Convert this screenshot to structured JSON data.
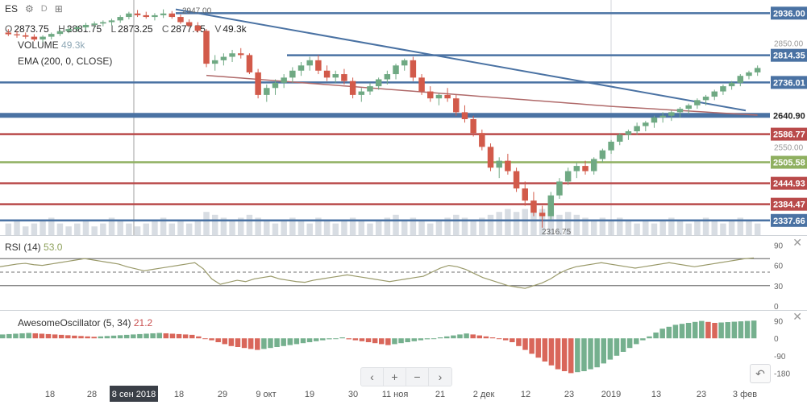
{
  "toolbar": {
    "symbol": "ES",
    "settings_icon": "gear-icon",
    "interval": "D",
    "compare_icon": "compare-icon"
  },
  "ohlc": {
    "o_label": "O",
    "o": "2873.75",
    "h_label": "H",
    "h": "2881.75",
    "l_label": "L",
    "l": "2873.25",
    "c_label": "C",
    "c": "2877.75",
    "v_label": "V",
    "v": "49.3k"
  },
  "volume_legend": {
    "label": "VOLUME",
    "value": "49.3k"
  },
  "ema_legend": {
    "label": "EMA (200, 0, CLOSE)"
  },
  "rsi_legend": {
    "label": "RSI (14)",
    "value": "53.0"
  },
  "ao_legend": {
    "label": "AwesomeOscillator (5, 34)",
    "value": "21.2"
  },
  "navigation": {
    "prev": "‹",
    "zoom_in": "+",
    "zoom_out": "−",
    "next": "›"
  },
  "undo": {
    "icon": "undo-icon"
  },
  "colors": {
    "up": "#6fa983",
    "down": "#d25a4a",
    "blue_level": "#4a72a3",
    "red_level": "#b94a4a",
    "green_level": "#8fb060",
    "ema": "#b06a6a",
    "rsi_line": "#9a9a6a",
    "ao_up": "#75b08e",
    "ao_down": "#d9665a",
    "volume": "#d8dde3"
  },
  "chart_data": [
    {
      "type": "candlestick",
      "title": "ES",
      "interval": "D",
      "ylim": [
        2300,
        2960
      ],
      "y_ticks": [
        2850.0,
        2550.0
      ],
      "price_labels": [
        {
          "value": 2936.0,
          "color": "#4a72a3"
        },
        {
          "value": 2814.35,
          "color": "#4a72a3"
        },
        {
          "value": 2736.01,
          "color": "#4a72a3"
        },
        {
          "value": 2640.9,
          "color": "#ffffff"
        },
        {
          "value": 2586.77,
          "color": "#b94a4a"
        },
        {
          "value": 2505.58,
          "color": "#8fb060"
        },
        {
          "value": 2444.93,
          "color": "#b94a4a"
        },
        {
          "value": 2384.47,
          "color": "#b94a4a"
        },
        {
          "value": 2337.66,
          "color": "#4a72a3"
        }
      ],
      "annotations": [
        {
          "text": "2947.00",
          "value": 2947.0
        },
        {
          "text": "2316.75",
          "value": 2316.75
        }
      ],
      "ohlc": [
        [
          2880,
          2890,
          2870,
          2875
        ],
        [
          2875,
          2885,
          2865,
          2872
        ],
        [
          2872,
          2880,
          2862,
          2868
        ],
        [
          2868,
          2875,
          2855,
          2860
        ],
        [
          2860,
          2872,
          2852,
          2868
        ],
        [
          2868,
          2880,
          2860,
          2876
        ],
        [
          2876,
          2888,
          2870,
          2884
        ],
        [
          2884,
          2896,
          2878,
          2890
        ],
        [
          2890,
          2900,
          2882,
          2895
        ],
        [
          2895,
          2908,
          2888,
          2902
        ],
        [
          2902,
          2912,
          2895,
          2906
        ],
        [
          2906,
          2915,
          2898,
          2910
        ],
        [
          2910,
          2920,
          2900,
          2915
        ],
        [
          2915,
          2930,
          2908,
          2925
        ],
        [
          2925,
          2940,
          2918,
          2935
        ],
        [
          2935,
          2945,
          2925,
          2930
        ],
        [
          2930,
          2940,
          2920,
          2925
        ],
        [
          2925,
          2936,
          2915,
          2930
        ],
        [
          2930,
          2947,
          2922,
          2935
        ],
        [
          2935,
          2942,
          2920,
          2925
        ],
        [
          2925,
          2932,
          2905,
          2910
        ],
        [
          2910,
          2918,
          2895,
          2900
        ],
        [
          2900,
          2910,
          2880,
          2885
        ],
        [
          2885,
          2890,
          2780,
          2790
        ],
        [
          2790,
          2815,
          2770,
          2800
        ],
        [
          2800,
          2820,
          2785,
          2810
        ],
        [
          2810,
          2830,
          2795,
          2820
        ],
        [
          2820,
          2835,
          2805,
          2815
        ],
        [
          2815,
          2820,
          2760,
          2765
        ],
        [
          2765,
          2775,
          2690,
          2700
        ],
        [
          2700,
          2730,
          2680,
          2720
        ],
        [
          2720,
          2745,
          2700,
          2735
        ],
        [
          2735,
          2760,
          2720,
          2750
        ],
        [
          2750,
          2780,
          2735,
          2770
        ],
        [
          2770,
          2795,
          2755,
          2785
        ],
        [
          2785,
          2810,
          2770,
          2800
        ],
        [
          2800,
          2815,
          2760,
          2770
        ],
        [
          2770,
          2785,
          2740,
          2750
        ],
        [
          2750,
          2770,
          2735,
          2760
        ],
        [
          2760,
          2775,
          2730,
          2740
        ],
        [
          2740,
          2750,
          2690,
          2700
        ],
        [
          2700,
          2720,
          2680,
          2710
        ],
        [
          2710,
          2735,
          2700,
          2725
        ],
        [
          2725,
          2750,
          2715,
          2745
        ],
        [
          2745,
          2770,
          2730,
          2760
        ],
        [
          2760,
          2790,
          2745,
          2785
        ],
        [
          2785,
          2805,
          2770,
          2800
        ],
        [
          2800,
          2810,
          2740,
          2750
        ],
        [
          2750,
          2760,
          2700,
          2710
        ],
        [
          2710,
          2725,
          2680,
          2690
        ],
        [
          2690,
          2705,
          2670,
          2700
        ],
        [
          2700,
          2720,
          2680,
          2690
        ],
        [
          2690,
          2700,
          2640,
          2650
        ],
        [
          2650,
          2670,
          2620,
          2630
        ],
        [
          2630,
          2640,
          2580,
          2590
        ],
        [
          2590,
          2600,
          2540,
          2550
        ],
        [
          2550,
          2560,
          2480,
          2490
        ],
        [
          2490,
          2520,
          2460,
          2510
        ],
        [
          2510,
          2530,
          2470,
          2480
        ],
        [
          2480,
          2490,
          2420,
          2430
        ],
        [
          2430,
          2450,
          2380,
          2395
        ],
        [
          2395,
          2420,
          2350,
          2360
        ],
        [
          2360,
          2380,
          2316.75,
          2350
        ],
        [
          2350,
          2420,
          2340,
          2410
        ],
        [
          2410,
          2460,
          2400,
          2450
        ],
        [
          2450,
          2490,
          2440,
          2480
        ],
        [
          2480,
          2505,
          2460,
          2495
        ],
        [
          2495,
          2510,
          2470,
          2480
        ],
        [
          2480,
          2520,
          2470,
          2515
        ],
        [
          2515,
          2545,
          2505,
          2540
        ],
        [
          2540,
          2570,
          2530,
          2565
        ],
        [
          2565,
          2590,
          2555,
          2585
        ],
        [
          2585,
          2600,
          2570,
          2595
        ],
        [
          2595,
          2620,
          2585,
          2610
        ],
        [
          2610,
          2625,
          2595,
          2620
        ],
        [
          2620,
          2640,
          2605,
          2635
        ],
        [
          2635,
          2650,
          2620,
          2640
        ],
        [
          2640,
          2655,
          2625,
          2650
        ],
        [
          2650,
          2665,
          2635,
          2660
        ],
        [
          2660,
          2675,
          2645,
          2670
        ],
        [
          2670,
          2690,
          2660,
          2685
        ],
        [
          2685,
          2700,
          2670,
          2695
        ],
        [
          2695,
          2715,
          2685,
          2710
        ],
        [
          2710,
          2730,
          2700,
          2725
        ],
        [
          2725,
          2740,
          2715,
          2735
        ],
        [
          2735,
          2760,
          2725,
          2755
        ],
        [
          2755,
          2770,
          2745,
          2765
        ],
        [
          2765,
          2785,
          2755,
          2777.75
        ]
      ],
      "volume": [
        4,
        5,
        3,
        4,
        5,
        6,
        4,
        3,
        4,
        5,
        3,
        4,
        6,
        5,
        4,
        3,
        4,
        5,
        6,
        4,
        5,
        4,
        5,
        8,
        7,
        6,
        5,
        6,
        7,
        6,
        5,
        4,
        5,
        6,
        5,
        4,
        6,
        5,
        4,
        5,
        6,
        5,
        4,
        5,
        6,
        7,
        5,
        6,
        5,
        4,
        5,
        6,
        7,
        6,
        5,
        6,
        7,
        8,
        9,
        8,
        9,
        10,
        9,
        8,
        7,
        8,
        7,
        6,
        5,
        6,
        5,
        6,
        5,
        4,
        5,
        4,
        5,
        6,
        5,
        4,
        5,
        6,
        5,
        4,
        5,
        6,
        5,
        4
      ]
    },
    {
      "type": "line",
      "title": "RSI (14)",
      "ylim": [
        0,
        100
      ],
      "y_ticks": [
        90,
        60,
        30,
        0
      ],
      "values": [
        58,
        60,
        62,
        63,
        61,
        60,
        62,
        64,
        66,
        68,
        70,
        68,
        66,
        64,
        62,
        58,
        55,
        52,
        54,
        56,
        58,
        60,
        62,
        64,
        55,
        40,
        32,
        35,
        38,
        36,
        40,
        42,
        44,
        40,
        38,
        36,
        35,
        38,
        40,
        42,
        44,
        46,
        44,
        42,
        40,
        38,
        36,
        38,
        40,
        42,
        44,
        50,
        56,
        60,
        58,
        54,
        48,
        42,
        38,
        34,
        30,
        28,
        26,
        30,
        34,
        40,
        48,
        54,
        58,
        60,
        62,
        64,
        62,
        60,
        58,
        56,
        58,
        60,
        62,
        64,
        62,
        60,
        58,
        60,
        62,
        64,
        66,
        68,
        70,
        71
      ]
    },
    {
      "type": "bar",
      "title": "AwesomeOscillator (5, 34)",
      "ylim": [
        -220,
        130
      ],
      "y_ticks": [
        90,
        0,
        -90,
        -180
      ],
      "values": [
        20,
        22,
        24,
        26,
        28,
        26,
        24,
        22,
        20,
        18,
        16,
        14,
        12,
        10,
        8,
        10,
        12,
        14,
        16,
        18,
        20,
        22,
        24,
        26,
        28,
        26,
        24,
        22,
        20,
        18,
        10,
        0,
        -10,
        -20,
        -30,
        -40,
        -45,
        -50,
        -55,
        -60,
        -55,
        -50,
        -45,
        -40,
        -35,
        -30,
        -25,
        -20,
        -15,
        -10,
        -5,
        0,
        5,
        -5,
        -10,
        -15,
        -20,
        -25,
        -30,
        -35,
        -30,
        -25,
        -20,
        -15,
        -10,
        -5,
        0,
        5,
        10,
        15,
        20,
        25,
        20,
        15,
        10,
        5,
        0,
        -10,
        -20,
        -40,
        -60,
        -80,
        -100,
        -120,
        -140,
        -160,
        -170,
        -180,
        -175,
        -170,
        -160,
        -150,
        -130,
        -110,
        -90,
        -70,
        -50,
        -30,
        -10,
        10,
        30,
        50,
        60,
        70,
        75,
        80,
        85,
        90,
        85,
        80,
        82,
        84,
        86,
        88,
        90,
        92
      ]
    }
  ],
  "x_axis": {
    "labels": [
      "18",
      "28",
      "8 сен 2018",
      "18",
      "29",
      "9 окт",
      "19",
      "30",
      "11 ноя",
      "21",
      "2 дек",
      "12",
      "23",
      "2019",
      "13",
      "23",
      "3 фев"
    ],
    "highlighted": "8 сен 2018"
  }
}
